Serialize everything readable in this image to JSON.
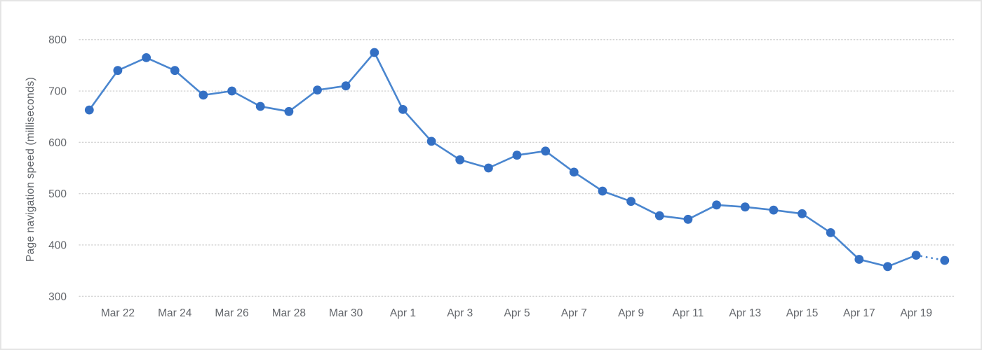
{
  "chart_data": {
    "type": "line",
    "title": "",
    "xlabel": "",
    "ylabel": "Page navigation speed (milliseconds)",
    "x": [
      "Mar 21",
      "Mar 22",
      "Mar 23",
      "Mar 24",
      "Mar 25",
      "Mar 26",
      "Mar 27",
      "Mar 28",
      "Mar 29",
      "Mar 30",
      "Mar 31",
      "Apr 1",
      "Apr 2",
      "Apr 3",
      "Apr 4",
      "Apr 5",
      "Apr 6",
      "Apr 7",
      "Apr 8",
      "Apr 9",
      "Apr 10",
      "Apr 11",
      "Apr 12",
      "Apr 13",
      "Apr 14",
      "Apr 15",
      "Apr 16",
      "Apr 17",
      "Apr 18",
      "Apr 19",
      "Apr 20"
    ],
    "values": [
      663,
      740,
      765,
      740,
      692,
      700,
      670,
      660,
      702,
      710,
      775,
      664,
      602,
      566,
      550,
      575,
      583,
      542,
      505,
      485,
      457,
      450,
      478,
      474,
      468,
      461,
      424,
      372,
      358,
      380,
      370
    ],
    "xtick_labels": [
      "Mar 22",
      "Mar 24",
      "Mar 26",
      "Mar 28",
      "Mar 30",
      "Apr 1",
      "Apr 3",
      "Apr 5",
      "Apr 7",
      "Apr 9",
      "Apr 11",
      "Apr 13",
      "Apr 15",
      "Apr 17",
      "Apr 19"
    ],
    "xtick_every": 2,
    "xtick_first_index": 1,
    "yticks": [
      300,
      400,
      500,
      600,
      700,
      800
    ],
    "ylim": [
      300,
      800
    ],
    "grid": "horizontal-dotted",
    "legend": "none",
    "last_segment": "dotted-projection",
    "marker": "filled-circle",
    "colors": {
      "line": "#4a86cf",
      "marker": "#3470c4",
      "grid": "#d2d2d2",
      "tick_text": "#63666b",
      "axis_title_text": "#5f6368",
      "background": "#ffffff",
      "border": "#e4e4e4"
    }
  }
}
